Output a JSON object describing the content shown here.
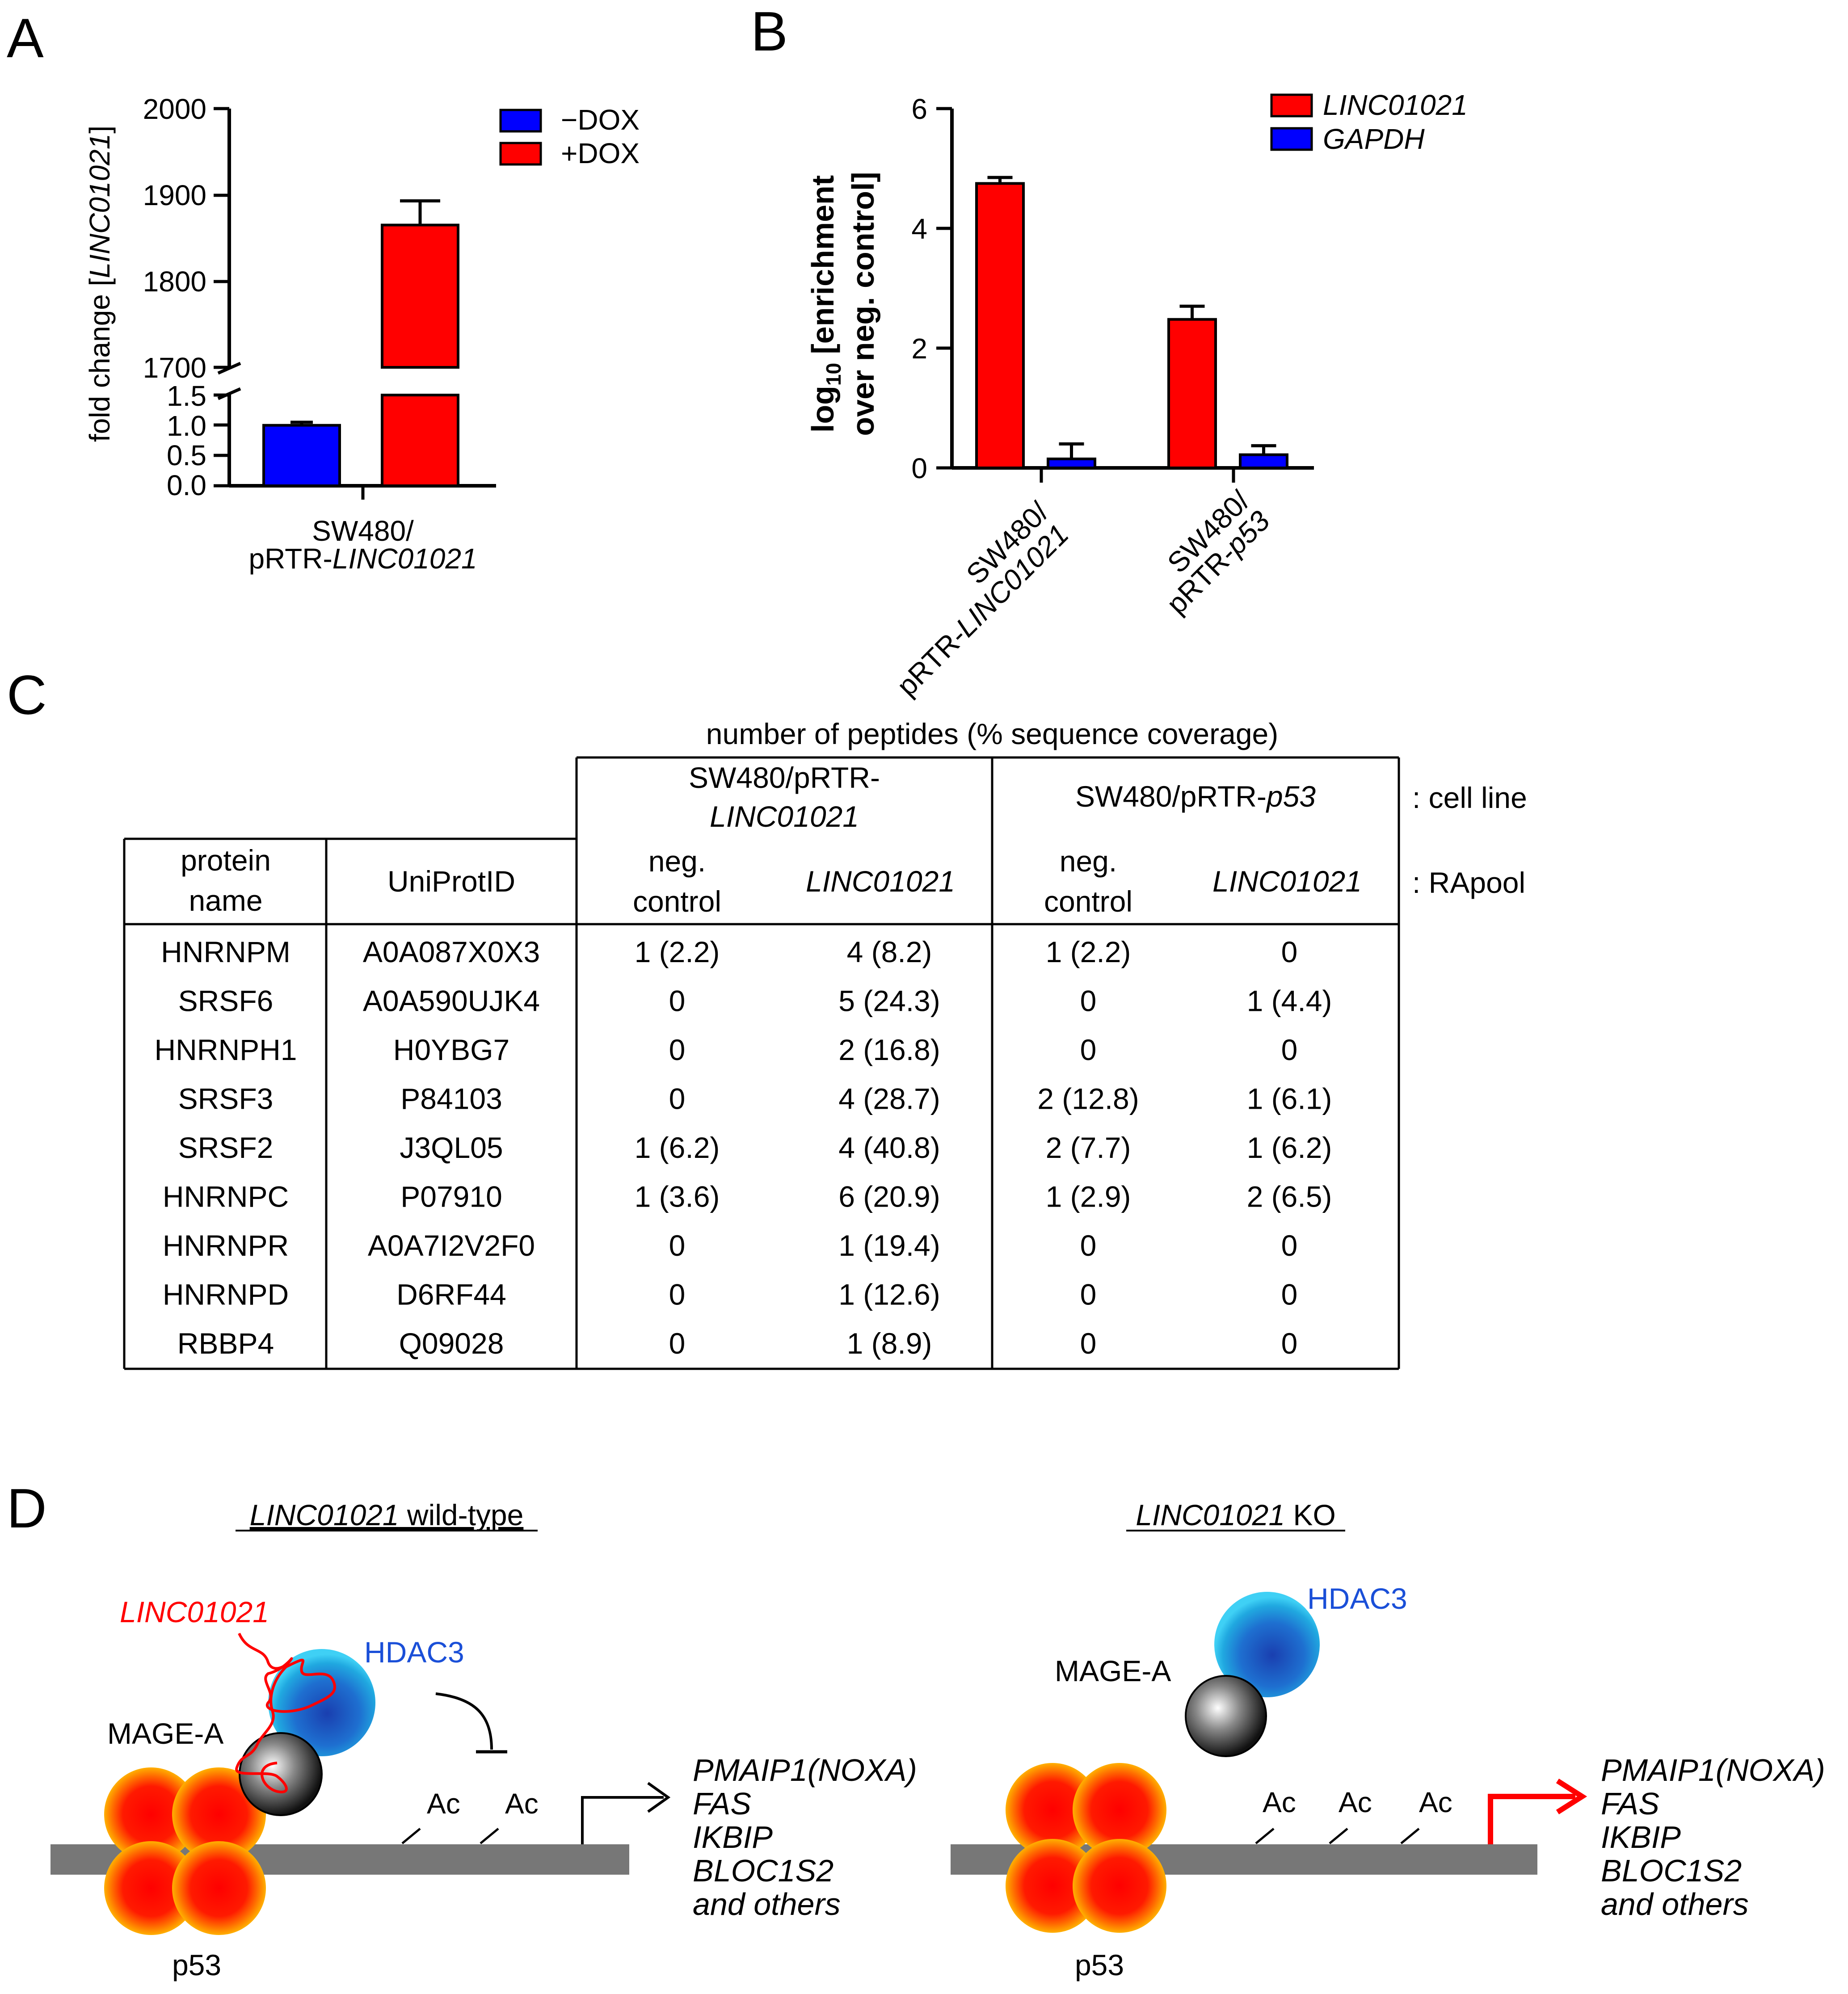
{
  "panel_labels": {
    "a": "A",
    "b": "B",
    "c": "C",
    "d": "D"
  },
  "colors": {
    "red": "#ff0000",
    "blue": "#0000ff",
    "hdac3_text": "#1a4fd8",
    "line": "#000000",
    "dna": "#777777"
  },
  "chart_data": [
    {
      "id": "A",
      "type": "bar",
      "ylabel": {
        "pre": "fold change [",
        "gene": "LINC01021",
        "post": "]"
      },
      "series": [
        {
          "name": "−DOX",
          "color": "#0000ff",
          "value": 1.0,
          "error": 0.05
        },
        {
          "name": "+DOX",
          "color": "#ff0000",
          "value": 1865,
          "error": 28
        }
      ],
      "axis_break": true,
      "lower_axis": {
        "ylim": [
          0,
          1.5
        ],
        "ticks": [
          "0.0",
          "0.5",
          "1.0",
          "1.5"
        ]
      },
      "upper_axis": {
        "ylim": [
          1700,
          2000
        ],
        "ticks": [
          "1700",
          "1800",
          "1900",
          "2000"
        ]
      },
      "category": {
        "line1": "SW480/",
        "line2_pre": "pRTR-",
        "line2_gene": "LINC01021"
      },
      "legend": [
        {
          "label": "−DOX",
          "color": "#0000ff"
        },
        {
          "label": "+DOX",
          "color": "#ff0000"
        }
      ]
    },
    {
      "id": "B",
      "type": "bar",
      "ylabel": {
        "line1_pre": "log",
        "line1_sub": "10",
        "line1_post": " [enrichment",
        "line2": "over neg. control]"
      },
      "ylim": [
        0,
        6
      ],
      "ticks": [
        "0",
        "2",
        "4",
        "6"
      ],
      "categories": [
        {
          "line1": "SW480/",
          "line2_pre": "pRTR-",
          "line2_gene": "LINC01021"
        },
        {
          "line1": "SW480/",
          "line2_pre": "pRTR-",
          "line2_gene": "p53"
        }
      ],
      "series": [
        {
          "name": "LINC01021",
          "color": "#ff0000",
          "values": [
            4.75,
            2.48
          ],
          "errors": [
            0.1,
            0.22
          ]
        },
        {
          "name": "GAPDH",
          "color": "#0000ff",
          "values": [
            0.15,
            0.22
          ],
          "errors": [
            0.25,
            0.15
          ]
        }
      ],
      "legend": [
        {
          "label": "LINC01021",
          "color": "#ff0000"
        },
        {
          "label": "GAPDH",
          "color": "#0000ff"
        }
      ]
    }
  ],
  "table": {
    "top_title": "number of peptides (% sequence coverage)",
    "cell_line_1_line1": "SW480/pRTR-",
    "cell_line_1_line2": "LINC01021",
    "cell_line_2_pre": "SW480/pRTR-",
    "cell_line_2_gene": "p53",
    "cell_line_tag": ": cell line",
    "rapool_tag": ": RApool",
    "headers": {
      "protein_line1": "protein",
      "protein_line2": "name",
      "uniprot": "UniProtID",
      "neg_line1": "neg.",
      "neg_line2": "control",
      "linc": "LINC01021"
    },
    "rows": [
      [
        "HNRNPM",
        "A0A087X0X3",
        "1 (2.2)",
        "4 (8.2)",
        "1 (2.2)",
        "0"
      ],
      [
        "SRSF6",
        "A0A590UJK4",
        "0",
        "5 (24.3)",
        "0",
        "1 (4.4)"
      ],
      [
        "HNRNPH1",
        "H0YBG7",
        "0",
        "2 (16.8)",
        "0",
        "0"
      ],
      [
        "SRSF3",
        "P84103",
        "0",
        "4 (28.7)",
        "2 (12.8)",
        "1 (6.1)"
      ],
      [
        "SRSF2",
        "J3QL05",
        "1 (6.2)",
        "4 (40.8)",
        "2 (7.7)",
        "1 (6.2)"
      ],
      [
        "HNRNPC",
        "P07910",
        "1 (3.6)",
        "6 (20.9)",
        "1 (2.9)",
        "2 (6.5)"
      ],
      [
        "HNRNPR",
        "A0A7I2V2F0",
        "0",
        "1 (19.4)",
        "0",
        "0"
      ],
      [
        "HNRNPD",
        "D6RF44",
        "0",
        "1 (12.6)",
        "0",
        "0"
      ],
      [
        "RBBP4",
        "Q09028",
        "0",
        "1 (8.9)",
        "0",
        "0"
      ]
    ]
  },
  "diagram": {
    "wt_title_gene": "LINC01021",
    "wt_title_rest": " wild-type",
    "ko_title_gene": "LINC01021",
    "ko_title_rest": " KO",
    "linc_label": "LINC01021",
    "hdac3": "HDAC3",
    "mage": "MAGE-A",
    "p53": "p53",
    "ac": "Ac",
    "targets": [
      "PMAIP1(NOXA)",
      "FAS",
      "IKBIP",
      "BLOC1S2",
      "and others"
    ]
  }
}
